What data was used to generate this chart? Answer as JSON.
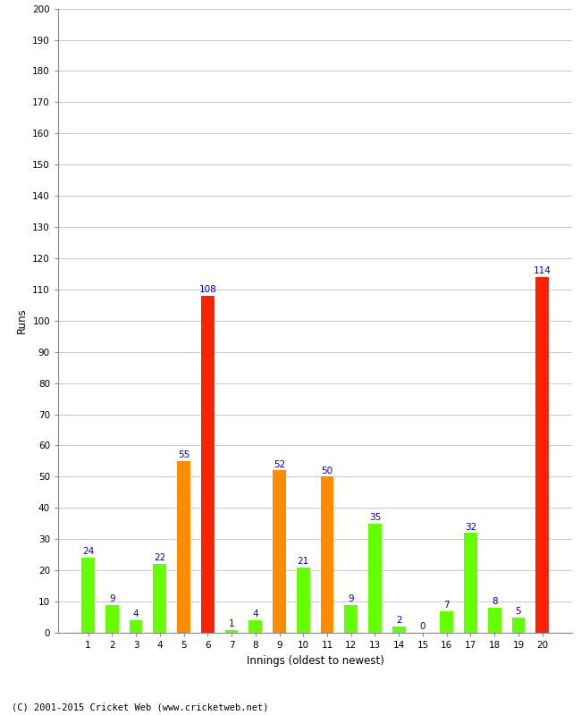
{
  "xlabel": "Innings (oldest to newest)",
  "ylabel": "Runs",
  "categories": [
    1,
    2,
    3,
    4,
    5,
    6,
    7,
    8,
    9,
    10,
    11,
    12,
    13,
    14,
    15,
    16,
    17,
    18,
    19,
    20
  ],
  "values": [
    24,
    9,
    4,
    22,
    55,
    108,
    1,
    4,
    52,
    21,
    50,
    9,
    35,
    2,
    0,
    7,
    32,
    8,
    5,
    114
  ],
  "bar_colors": [
    "#66ff00",
    "#66ff00",
    "#66ff00",
    "#66ff00",
    "#ff8c00",
    "#ff2200",
    "#66ff00",
    "#66ff00",
    "#ff8c00",
    "#66ff00",
    "#ff8c00",
    "#66ff00",
    "#66ff00",
    "#66ff00",
    "#66ff00",
    "#66ff00",
    "#66ff00",
    "#66ff00",
    "#66ff00",
    "#ff2200"
  ],
  "label_color": "#0000cc",
  "label_fontsize": 7.5,
  "ylim": [
    0,
    200
  ],
  "yticks": [
    0,
    10,
    20,
    30,
    40,
    50,
    60,
    70,
    80,
    90,
    100,
    110,
    120,
    130,
    140,
    150,
    160,
    170,
    180,
    190,
    200
  ],
  "background_color": "#ffffff",
  "grid_color": "#cccccc",
  "footer": "(C) 2001-2015 Cricket Web (www.cricketweb.net)",
  "xlabel_fontsize": 8.5,
  "ylabel_fontsize": 8.5,
  "tick_fontsize": 7.5,
  "footer_fontsize": 7.5,
  "bar_width": 0.55
}
